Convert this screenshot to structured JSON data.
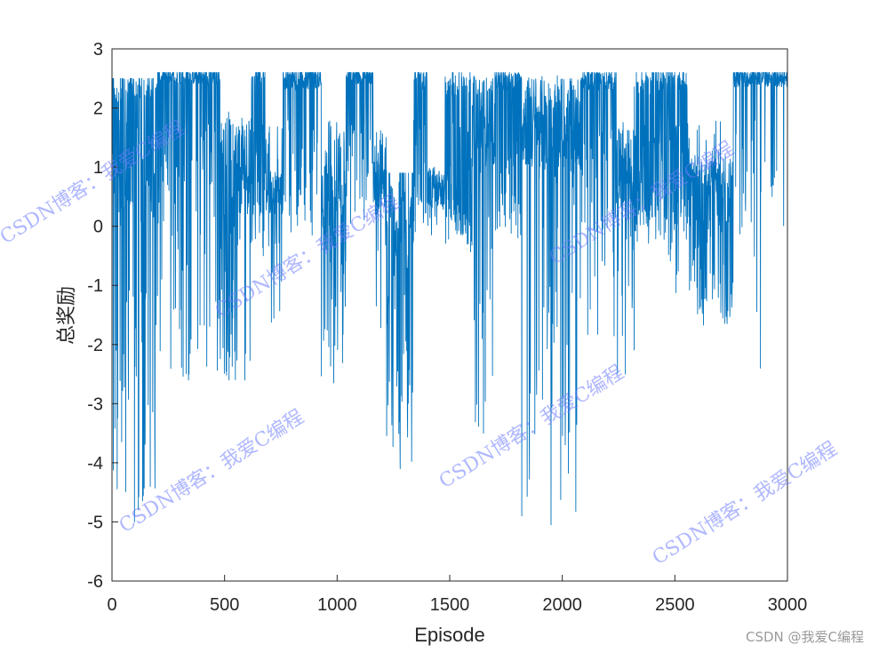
{
  "chart_data": {
    "type": "line",
    "xlabel": "Episode",
    "ylabel": "总奖励",
    "xlim": [
      0,
      3000
    ],
    "ylim": [
      -6,
      3
    ],
    "xticks": [
      0,
      500,
      1000,
      1500,
      2000,
      2500,
      3000
    ],
    "yticks": [
      -6,
      -5,
      -4,
      -3,
      -2,
      -1,
      0,
      1,
      2,
      3
    ],
    "grid": false,
    "line_color": "#0072bd",
    "series": [
      {
        "values_description_note": "",
        "segments": [
          [
            0,
            200,
            2.1,
            2.5,
            0.6,
            0.35,
            -5.0,
            2.5
          ],
          [
            200,
            480,
            2.4,
            2.55,
            0.35,
            0.25,
            -2.6,
            2.6
          ],
          [
            480,
            560,
            1.0,
            1.8,
            0.8,
            0.5,
            -2.6,
            2.6
          ],
          [
            560,
            620,
            0.2,
            1.7,
            0.2,
            0.45,
            -2.6,
            2.6
          ],
          [
            620,
            680,
            2.4,
            2.55,
            0.5,
            0.15,
            -0.5,
            2.6
          ],
          [
            680,
            760,
            0.2,
            0.8,
            0.3,
            0.4,
            -1.7,
            2.6
          ],
          [
            760,
            930,
            2.3,
            2.55,
            0.2,
            0.15,
            -0.2,
            2.6
          ],
          [
            930,
            1040,
            0.2,
            0.9,
            0.7,
            0.55,
            -2.65,
            2.6
          ],
          [
            1040,
            1160,
            2.4,
            2.55,
            0.3,
            0.15,
            -0.4,
            2.6
          ],
          [
            1160,
            1220,
            0.2,
            1.5,
            0.2,
            0.5,
            -1.9,
            2.6
          ],
          [
            1220,
            1340,
            -0.5,
            0.6,
            0.6,
            0.55,
            -4.1,
            0.9
          ],
          [
            1340,
            1400,
            2.3,
            2.55,
            0.4,
            0.2,
            -0.2,
            2.6
          ],
          [
            1400,
            1480,
            0.3,
            0.8,
            0.2,
            0.45,
            -0.15,
            1.0
          ],
          [
            1480,
            1600,
            2.2,
            2.5,
            0.6,
            0.4,
            -0.5,
            2.6
          ],
          [
            1600,
            1700,
            1.0,
            2.4,
            0.2,
            0.55,
            -3.5,
            2.6
          ],
          [
            1700,
            1820,
            2.3,
            2.5,
            0.3,
            0.25,
            -0.2,
            2.6
          ],
          [
            1820,
            2080,
            1.0,
            2.4,
            0.2,
            0.65,
            -5.05,
            2.6
          ],
          [
            2080,
            2240,
            2.3,
            2.5,
            0.3,
            0.25,
            -1.9,
            2.6
          ],
          [
            2240,
            2320,
            0.3,
            1.5,
            0.3,
            0.55,
            -2.5,
            2.6
          ],
          [
            2320,
            2460,
            2.2,
            2.5,
            0.5,
            0.35,
            -0.3,
            2.6
          ],
          [
            2460,
            2560,
            2.3,
            2.55,
            0.4,
            0.2,
            -1.3,
            2.6
          ],
          [
            2560,
            2760,
            0.5,
            1.0,
            0.6,
            0.55,
            -1.7,
            2.6
          ],
          [
            2760,
            3000,
            2.35,
            2.55,
            0.08,
            0.1,
            -2.4,
            2.6
          ]
        ]
      }
    ]
  },
  "watermarks": [
    {
      "text": "CSDN博客：我爱C编程"
    },
    {
      "text": "CSDN博客：我爱C编程"
    },
    {
      "text": "CSDN博客：我爱C编程"
    },
    {
      "text": "CSDN博客：我爱C编程"
    },
    {
      "text": "CSDN博客：我爱C编程"
    },
    {
      "text": "CSDN博客：我爱C编程"
    }
  ],
  "footer": {
    "credit": "CSDN @我爱C编程"
  }
}
